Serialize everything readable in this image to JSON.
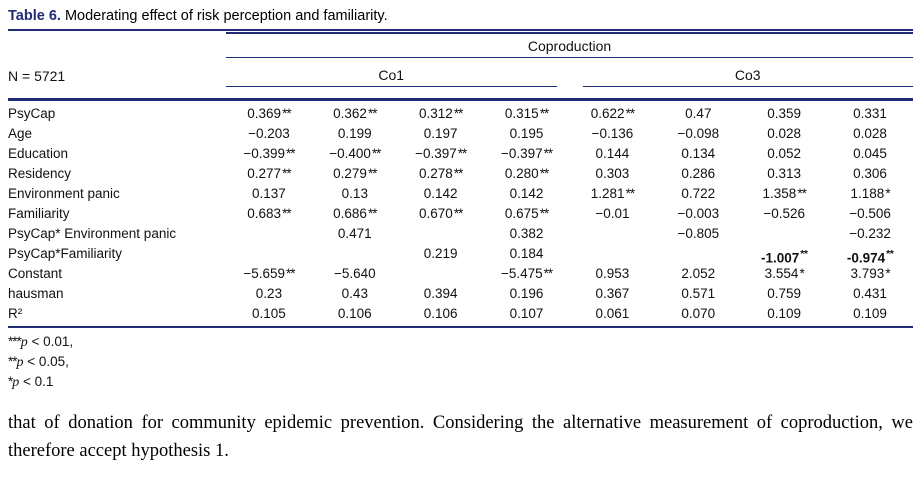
{
  "colors": {
    "accent": "#212a74",
    "text": "#111111"
  },
  "table": {
    "caption_label": "Table 6.",
    "caption_text": "Moderating effect of risk perception and familiarity.",
    "sample_size": "N = 5721",
    "spanner": "Coproduction",
    "groups": [
      "Co1",
      "Co3"
    ],
    "rows": [
      {
        "label": "PsyCap",
        "cells": [
          {
            "v": "0.369",
            "s": "**"
          },
          {
            "v": "0.362",
            "s": "**"
          },
          {
            "v": "0.312",
            "s": "**"
          },
          {
            "v": "0.315",
            "s": "**"
          },
          {
            "v": "0.622",
            "s": "**"
          },
          {
            "v": "0.47"
          },
          {
            "v": "0.359"
          },
          {
            "v": "0.331"
          }
        ]
      },
      {
        "label": "Age",
        "cells": [
          {
            "v": "−0.203"
          },
          {
            "v": "0.199"
          },
          {
            "v": "0.197"
          },
          {
            "v": "0.195"
          },
          {
            "v": "−0.136"
          },
          {
            "v": "−0.098"
          },
          {
            "v": "0.028"
          },
          {
            "v": "0.028"
          }
        ]
      },
      {
        "label": "Education",
        "cells": [
          {
            "v": "−0.399",
            "s": "**"
          },
          {
            "v": "−0.400",
            "s": "**"
          },
          {
            "v": "−0.397",
            "s": "**"
          },
          {
            "v": "−0.397",
            "s": "**"
          },
          {
            "v": "0.144"
          },
          {
            "v": "0.134"
          },
          {
            "v": "0.052"
          },
          {
            "v": "0.045"
          }
        ]
      },
      {
        "label": "Residency",
        "cells": [
          {
            "v": "0.277",
            "s": "**"
          },
          {
            "v": "0.279",
            "s": "**"
          },
          {
            "v": "0.278",
            "s": "**"
          },
          {
            "v": "0.280",
            "s": "**"
          },
          {
            "v": "0.303"
          },
          {
            "v": "0.286"
          },
          {
            "v": "0.313"
          },
          {
            "v": "0.306"
          }
        ]
      },
      {
        "label": "Environment panic",
        "cells": [
          {
            "v": "0.137"
          },
          {
            "v": "0.13"
          },
          {
            "v": "0.142"
          },
          {
            "v": "0.142"
          },
          {
            "v": "1.281",
            "s": "**"
          },
          {
            "v": "0.722"
          },
          {
            "v": "1.358",
            "s": "**"
          },
          {
            "v": "1.188",
            "s": "*"
          }
        ]
      },
      {
        "label": "Familiarity",
        "cells": [
          {
            "v": "0.683",
            "s": "**"
          },
          {
            "v": "0.686",
            "s": "**"
          },
          {
            "v": "0.670",
            "s": "**"
          },
          {
            "v": "0.675",
            "s": "**"
          },
          {
            "v": "−0.01"
          },
          {
            "v": "−0.003"
          },
          {
            "v": "−0.526"
          },
          {
            "v": "−0.506"
          }
        ]
      },
      {
        "label": "PsyCap* Environment panic",
        "cells": [
          null,
          {
            "v": "0.471"
          },
          null,
          {
            "v": "0.382"
          },
          null,
          {
            "v": "−0.805"
          },
          null,
          {
            "v": "−0.232"
          }
        ]
      },
      {
        "label": "PsyCap*Familiarity",
        "cells": [
          null,
          null,
          {
            "v": "0.219"
          },
          {
            "v": "0.184"
          },
          null,
          null,
          {
            "v": "-1.007",
            "s": "**",
            "b": true
          },
          {
            "v": "-0.974",
            "s": "**",
            "b": true
          }
        ]
      },
      {
        "label": "Constant",
        "cells": [
          {
            "v": "−5.659",
            "s": "**"
          },
          {
            "v": "−5.640"
          },
          null,
          {
            "v": "−5.475",
            "s": "**"
          },
          {
            "v": "0.953"
          },
          {
            "v": "2.052"
          },
          {
            "v": "3.554",
            "s": "*"
          },
          {
            "v": "3.793",
            "s": "*"
          }
        ]
      },
      {
        "label": "hausman",
        "cells": [
          {
            "v": "0.23"
          },
          {
            "v": "0.43"
          },
          {
            "v": "0.394"
          },
          {
            "v": "0.196"
          },
          {
            "v": "0.367"
          },
          {
            "v": "0.571"
          },
          {
            "v": "0.759"
          },
          {
            "v": "0.431"
          }
        ]
      },
      {
        "label": "R²",
        "cells": [
          {
            "v": "0.105"
          },
          {
            "v": "0.106"
          },
          {
            "v": "0.106"
          },
          {
            "v": "0.107"
          },
          {
            "v": "0.061"
          },
          {
            "v": "0.070"
          },
          {
            "v": "0.109"
          },
          {
            "v": "0.109"
          }
        ]
      }
    ],
    "footnotes": [
      {
        "stars": "***",
        "var": "p",
        "rest": " < 0.01,"
      },
      {
        "stars": "**",
        "var": "p",
        "rest": " < 0.05,"
      },
      {
        "stars": "*",
        "var": "p",
        "rest": " < 0.1"
      }
    ]
  },
  "paragraph": "that of donation for community epidemic prevention. Considering the alternative measurement of coproduction, we therefore accept hypothesis 1."
}
